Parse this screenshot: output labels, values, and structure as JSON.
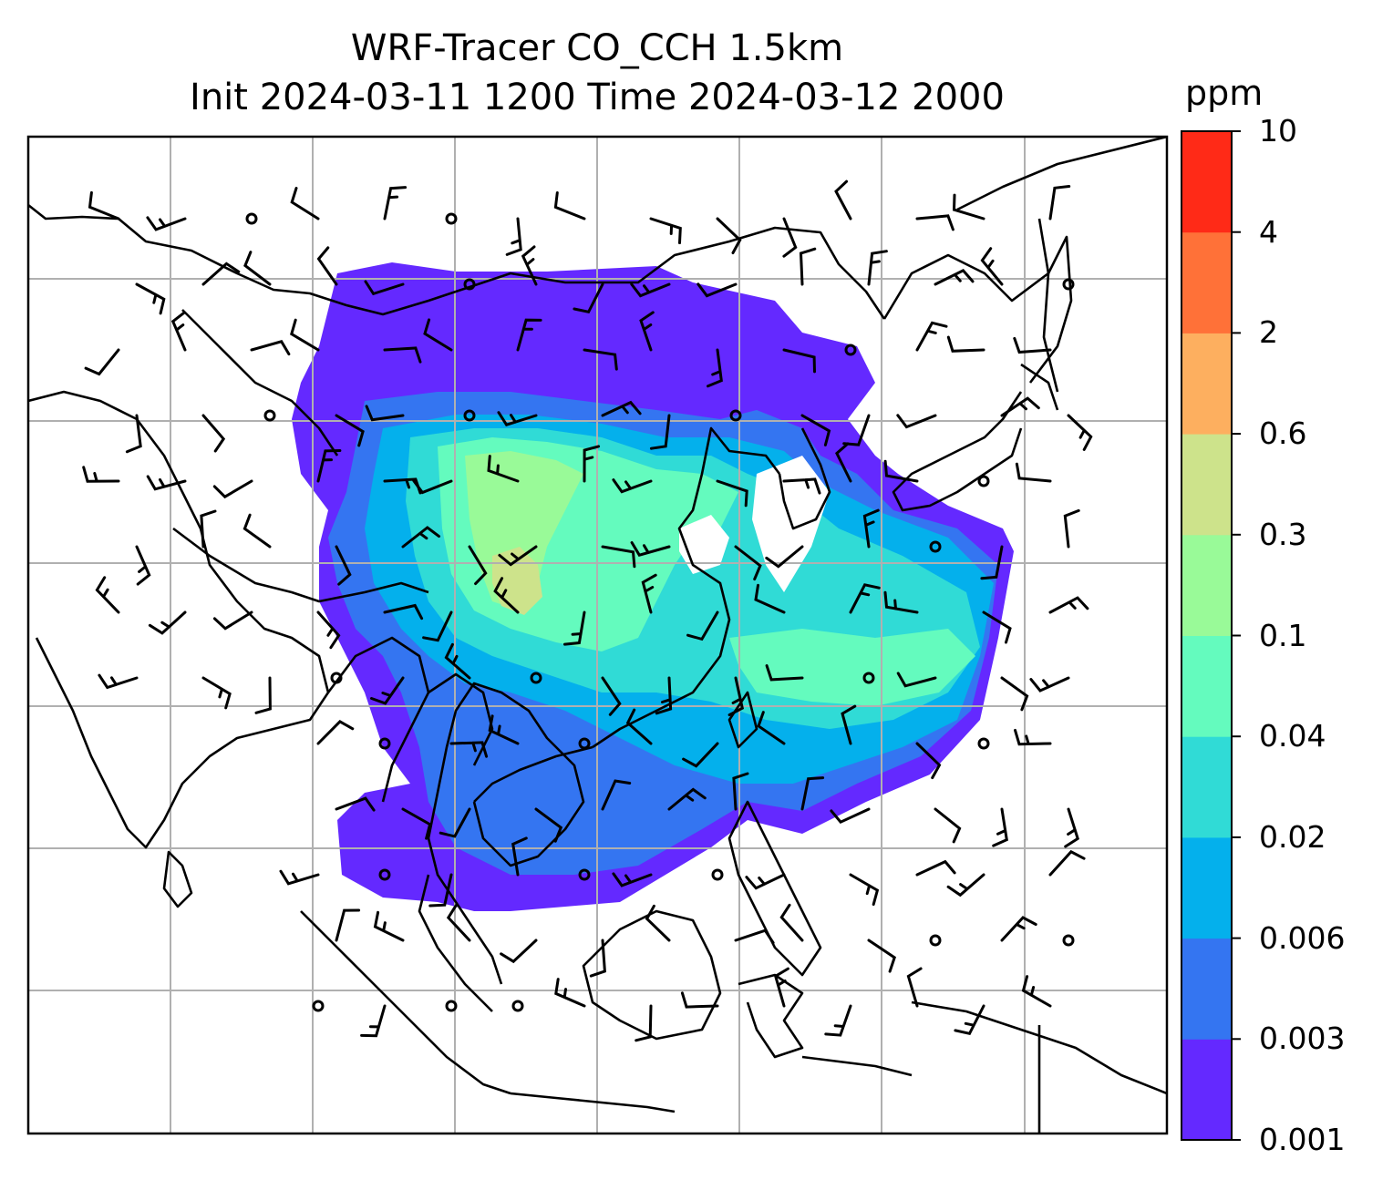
{
  "title_line1": "WRF-Tracer CO_CCH 1.5km",
  "title_line2": "Init 2024-03-11 1200 Time 2024-03-12 2000",
  "colorbar": {
    "unit": "ppm",
    "levels": [
      "0.001",
      "0.003",
      "0.006",
      "0.02",
      "0.04",
      "0.1",
      "0.3",
      "0.6",
      "2",
      "4",
      "10"
    ],
    "colors": [
      "#6429ff",
      "#3475f1",
      "#04b0ec",
      "#30dbd6",
      "#64fbbe",
      "#99fa98",
      "#cde38b",
      "#fdaf5f",
      "#ff7138",
      "#ff2a17"
    ]
  },
  "map": {
    "frame_color": "#000000",
    "gridline_color": "#b0b0b0",
    "coastline_color": "#000000",
    "wind_barb_color": "#000000"
  }
}
